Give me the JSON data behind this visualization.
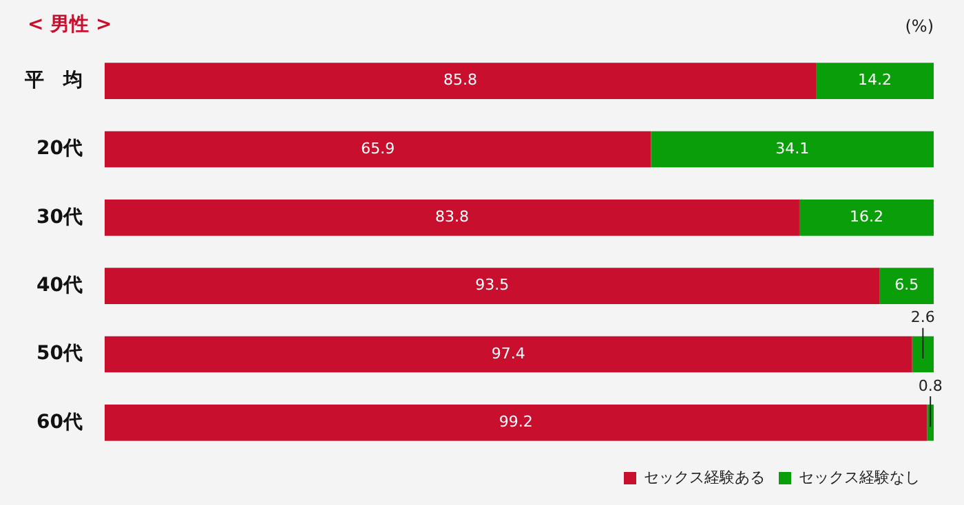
{
  "chart_data": {
    "type": "bar",
    "orientation": "horizontal",
    "stacked": true,
    "title": "< 男性 >",
    "annotations": [
      "(%)"
    ],
    "categories": [
      "平　均",
      "20代",
      "30代",
      "40代",
      "50代",
      "60代"
    ],
    "series": [
      {
        "name": "セックス経験ある",
        "color": "#c8102e",
        "values": [
          85.8,
          65.9,
          83.8,
          93.5,
          97.4,
          99.2
        ]
      },
      {
        "name": "セックス経験なし",
        "color": "#0b9e0b",
        "values": [
          14.2,
          34.1,
          16.2,
          6.5,
          2.6,
          0.8
        ]
      }
    ],
    "xlim": [
      0,
      100
    ],
    "tick_labels": "y",
    "data_labels": true,
    "grid": false,
    "legend": "bottom right"
  }
}
